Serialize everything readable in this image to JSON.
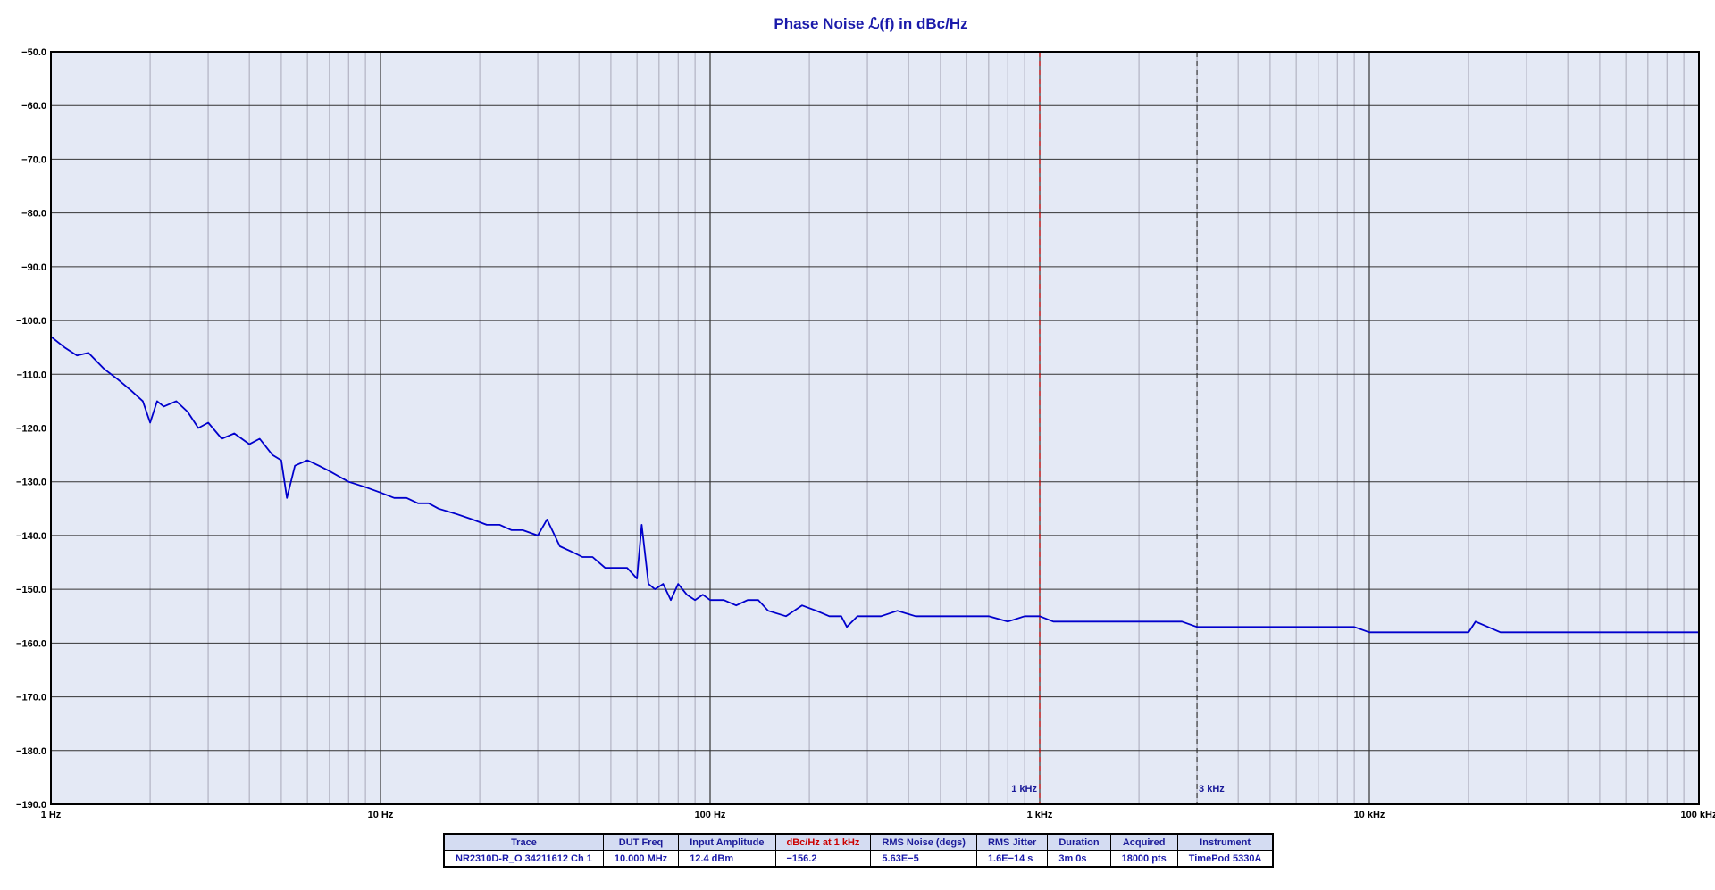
{
  "chart_data": {
    "type": "line",
    "title": "Phase Noise ℒ(f) in dBc/Hz",
    "xscale": "log",
    "xlim": [
      1,
      100000
    ],
    "ylim": [
      -190,
      -50
    ],
    "grid": true,
    "x_tick_labels": [
      {
        "x": 1,
        "label": "1 Hz"
      },
      {
        "x": 10,
        "label": "10 Hz"
      },
      {
        "x": 100,
        "label": "100 Hz"
      },
      {
        "x": 1000,
        "label": "1 kHz"
      },
      {
        "x": 10000,
        "label": "10 kHz"
      },
      {
        "x": 100000,
        "label": "100 kHz"
      }
    ],
    "y_ticks": [
      -50,
      -60,
      -70,
      -80,
      -90,
      -100,
      -110,
      -120,
      -130,
      -140,
      -150,
      -160,
      -170,
      -180,
      -190
    ],
    "y_tick_labels": [
      "−50.0",
      "−60.0",
      "−70.0",
      "−80.0",
      "−90.0",
      "−100.0",
      "−110.0",
      "−120.0",
      "−130.0",
      "−140.0",
      "−150.0",
      "−160.0",
      "−170.0",
      "−180.0",
      "−190.0"
    ],
    "markers": [
      {
        "x": 1000,
        "label": "1 kHz",
        "color": "#cc0000"
      },
      {
        "x": 3000,
        "label": "3 kHz",
        "color": "#333333"
      }
    ],
    "series": [
      {
        "color": "#0000cc",
        "x": [
          1,
          1.1,
          1.2,
          1.3,
          1.45,
          1.6,
          1.75,
          1.9,
          2.0,
          2.1,
          2.2,
          2.4,
          2.6,
          2.8,
          3.0,
          3.3,
          3.6,
          4.0,
          4.3,
          4.7,
          5.0,
          5.2,
          5.5,
          6.0,
          6.5,
          7.0,
          8.0,
          9.0,
          10,
          11,
          12,
          13,
          14,
          15,
          17,
          19,
          21,
          23,
          25,
          27,
          30,
          32,
          35,
          38,
          41,
          44,
          48,
          52,
          56,
          60,
          62,
          65,
          68,
          72,
          76,
          80,
          85,
          90,
          95,
          100,
          110,
          120,
          130,
          140,
          150,
          170,
          190,
          210,
          230,
          250,
          260,
          280,
          300,
          330,
          370,
          420,
          480,
          550,
          620,
          700,
          800,
          900,
          1000,
          1100,
          1300,
          1500,
          1800,
          2200,
          2700,
          3000,
          3500,
          4000,
          5000,
          6000,
          7000,
          8000,
          9000,
          10000,
          12000,
          15000,
          19000,
          20000,
          21000,
          25000,
          30000,
          40000,
          50000,
          60000,
          70000,
          80000,
          90000,
          100000
        ],
        "y": [
          -103,
          -105,
          -106.5,
          -106,
          -109,
          -111,
          -113,
          -115,
          -119,
          -115,
          -116,
          -115,
          -117,
          -120,
          -119,
          -122,
          -121,
          -123,
          -122,
          -125,
          -126,
          -133,
          -127,
          -126,
          -127,
          -128,
          -130,
          -131,
          -132,
          -133,
          -133,
          -134,
          -134,
          -135,
          -136,
          -137,
          -138,
          -138,
          -139,
          -139,
          -140,
          -137,
          -142,
          -143,
          -144,
          -144,
          -146,
          -146,
          -146,
          -148,
          -138,
          -149,
          -150,
          -149,
          -152,
          -149,
          -151,
          -152,
          -151,
          -152,
          -152,
          -153,
          -152,
          -152,
          -154,
          -155,
          -153,
          -154,
          -155,
          -155,
          -157,
          -155,
          -155,
          -155,
          -154,
          -155,
          -155,
          -155,
          -155,
          -155,
          -156,
          -155,
          -155,
          -156,
          -156,
          -156,
          -156,
          -156,
          -156,
          -157,
          -157,
          -157,
          -157,
          -157,
          -157,
          -157,
          -157,
          -158,
          -158,
          -158,
          -158,
          -158,
          -156,
          -158,
          -158,
          -158,
          -158,
          -158,
          -158,
          -158,
          -158,
          -158
        ]
      }
    ]
  },
  "info_table": {
    "headers": [
      "Trace",
      "DUT Freq",
      "Input Amplitude",
      "dBc/Hz at 1 kHz",
      "RMS Noise (degs)",
      "RMS Jitter",
      "Duration",
      "Acquired",
      "Instrument"
    ],
    "values": [
      "NR2310D-R_O 34211612 Ch 1",
      "10.000 MHz",
      "12.4 dBm",
      "−156.2",
      "5.63E−5",
      "1.6E−14 s",
      "3m 0s",
      "18000 pts",
      "TimePod 5330A"
    ],
    "highlight_header_color": "#cc0000"
  }
}
